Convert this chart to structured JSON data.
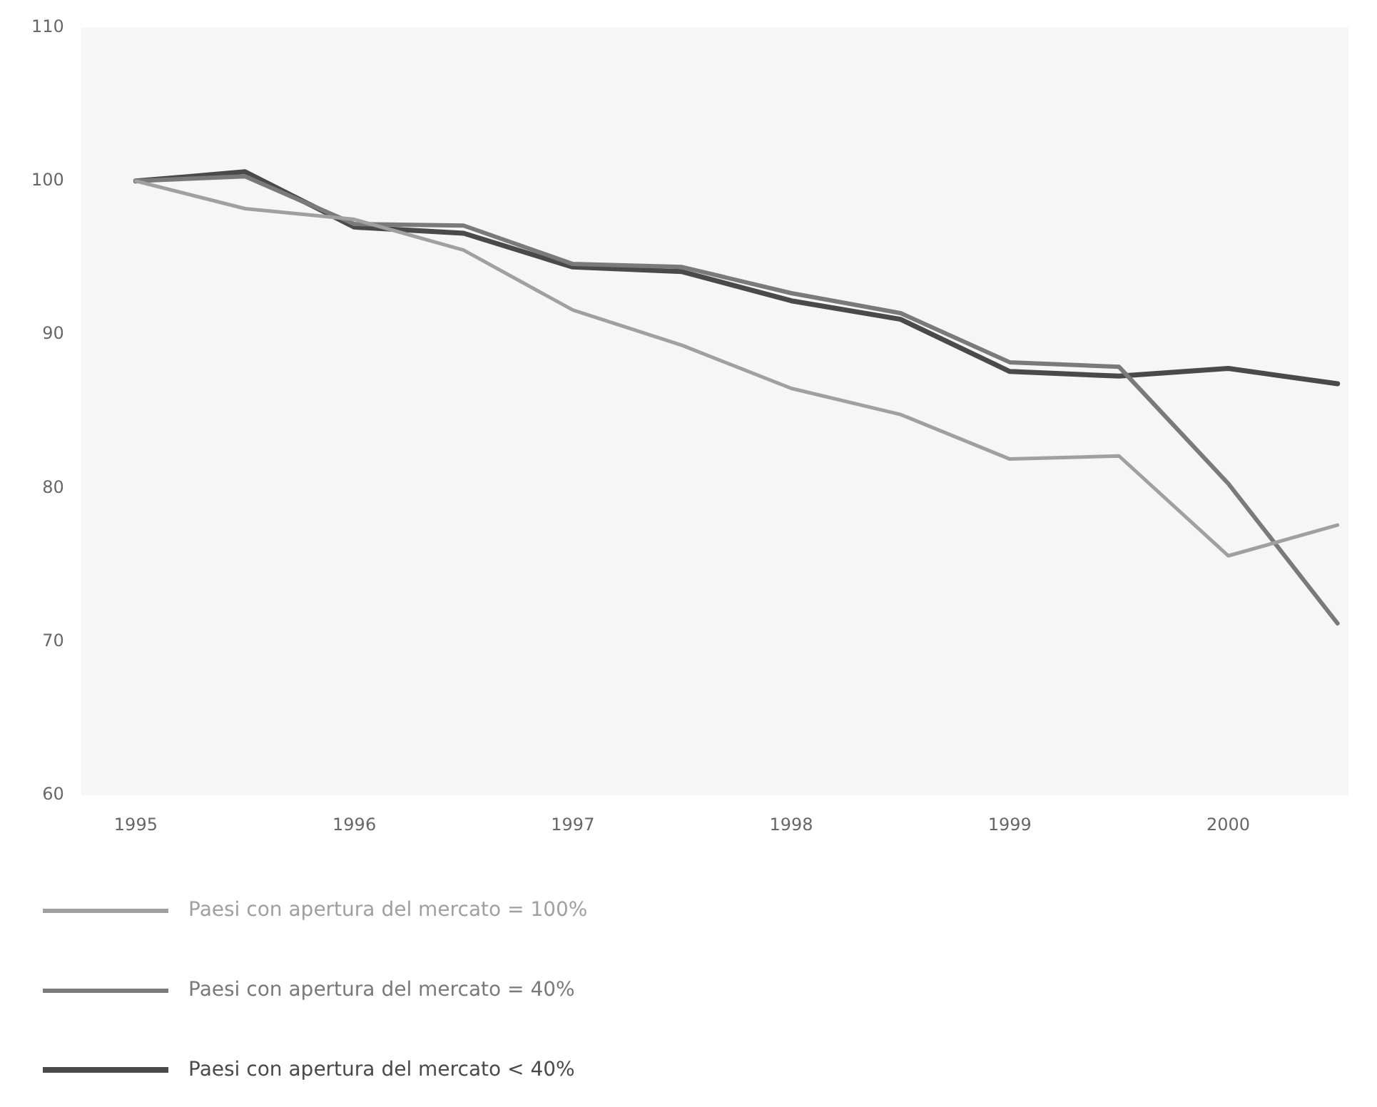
{
  "chart_data": {
    "type": "line",
    "x": [
      1995,
      1995.5,
      1996,
      1996.5,
      1997,
      1997.5,
      1998,
      1998.5,
      1999,
      1999.5,
      2000,
      2000.5
    ],
    "series": [
      {
        "name": "Paesi con apertura del mercato = 100%",
        "color": "#a0a0a0",
        "values": [
          100,
          98.2,
          97.5,
          95.5,
          91.6,
          89.3,
          86.5,
          84.8,
          81.9,
          82.1,
          75.6,
          77.6
        ]
      },
      {
        "name": "Paesi con apertura del mercato = 40%",
        "color": "#7a7a7a",
        "values": [
          100,
          100.3,
          97.2,
          97.1,
          94.6,
          94.4,
          92.7,
          91.4,
          88.2,
          87.9,
          80.3,
          71.2
        ]
      },
      {
        "name": "Paesi con apertura del mercato < 40%",
        "color": "#4a4a4a",
        "values": [
          100,
          100.6,
          97.0,
          96.6,
          94.4,
          94.1,
          92.2,
          91.0,
          87.6,
          87.3,
          87.8,
          86.8
        ]
      }
    ],
    "xlim": [
      1994.75,
      2000.55
    ],
    "xticks": [
      1995,
      1996,
      1997,
      1998,
      1999,
      2000
    ],
    "ylim": [
      60,
      110
    ],
    "yticks": [
      60,
      70,
      80,
      90,
      100,
      110
    ],
    "grid": false,
    "legend": "bottom",
    "marker": "none",
    "line_style": "solid"
  }
}
